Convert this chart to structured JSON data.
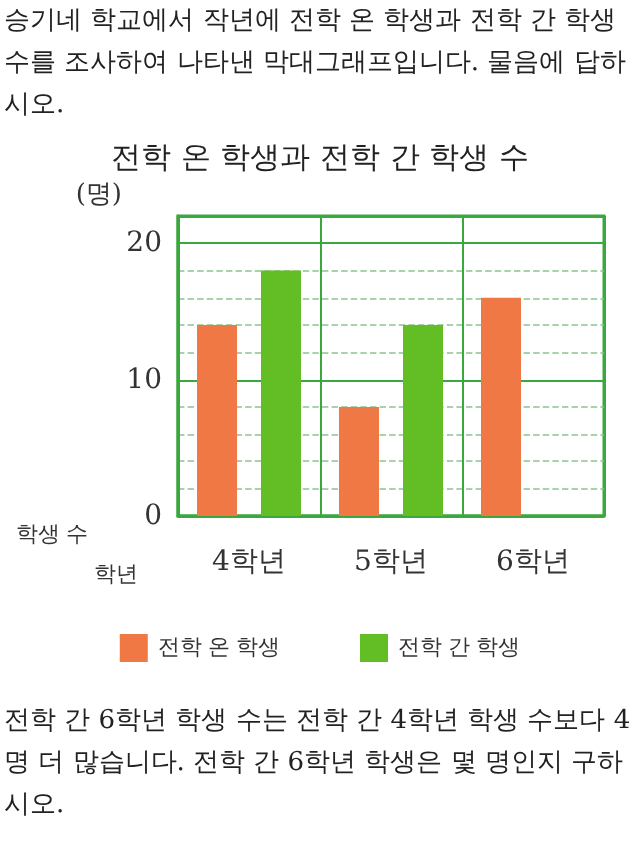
{
  "chart_data": {
    "type": "bar",
    "title": "전학 온 학생과 전학 간 학생 수",
    "ylabel": "(명)",
    "xlabel": "학년",
    "annotations": [
      "승기네 학교에서 작년에 전학 온 학생과 전학 간 학생 수를 조사하여 나타낸 막대그래프입니다. 물음에 답하시오.",
      "전학 간 6학년 학생 수는 전학 간 4학년 학생 수보다 4명 더 많습니다. 전학 간 6학년 학생은 몇 명인지 구하시오.",
      "학생 수"
    ],
    "categories": [
      "4학년",
      "5학년",
      "6학년"
    ],
    "series": [
      {
        "name": "전학 온 학생",
        "color": "#f07844",
        "values": [
          14,
          8,
          16
        ]
      },
      {
        "name": "전학 간 학생",
        "color": "#62be24",
        "values": [
          18,
          14,
          null
        ]
      }
    ],
    "ylim": [
      0,
      22
    ],
    "yticks": [
      0,
      {
        "value": 2,
        "label": null
      },
      {
        "value": 4,
        "label": null
      },
      {
        "value": 6,
        "label": null
      },
      {
        "value": 8,
        "label": null
      },
      10,
      {
        "value": 12,
        "label": null
      },
      {
        "value": 14,
        "label": null
      },
      {
        "value": 16,
        "label": null
      },
      {
        "value": 18,
        "label": null
      },
      20
    ],
    "grid": true,
    "legend": "bottom"
  }
}
